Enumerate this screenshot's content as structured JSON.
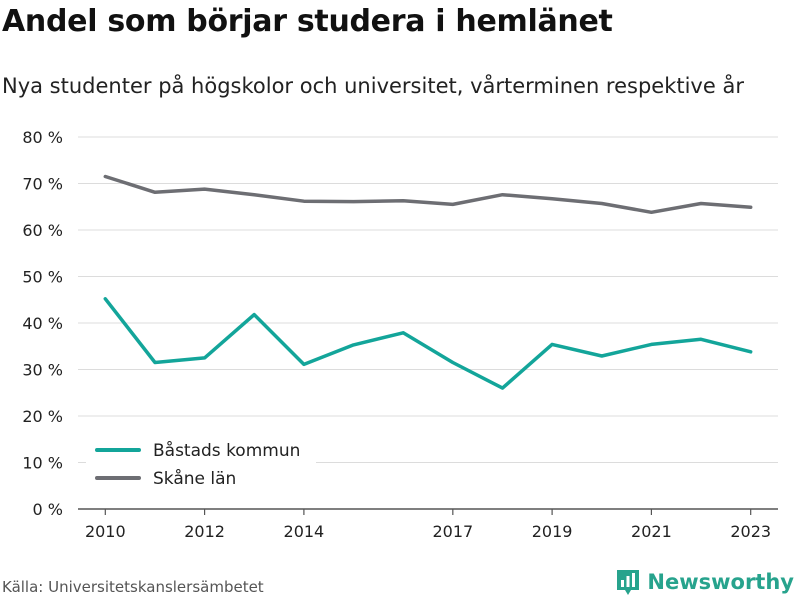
{
  "title": "Andel som börjar studera i hemlänet",
  "subtitle": "Nya studenter på högskolor och universitet, vårterminen respektive år",
  "source": "Källa: Universitetskanslersämbetet",
  "brand": {
    "name": "Newsworthy",
    "icon": "bar-chart-logo-icon",
    "color": "#27a38d"
  },
  "chart_data": {
    "type": "line",
    "x": [
      2010,
      2011,
      2012,
      2013,
      2014,
      2015,
      2016,
      2017,
      2018,
      2019,
      2020,
      2021,
      2022,
      2023
    ],
    "x_ticks": [
      2010,
      2012,
      2014,
      2017,
      2019,
      2021,
      2023
    ],
    "y_ticks": [
      0,
      10,
      20,
      30,
      40,
      50,
      60,
      70,
      80
    ],
    "y_tick_suffix": " %",
    "ylim": [
      0,
      80
    ],
    "grid": true,
    "legend_position": "bottom-left",
    "series": [
      {
        "name": "Båstads kommun",
        "color": "#13a59a",
        "values": [
          45.2,
          31.5,
          32.5,
          41.8,
          31.1,
          35.3,
          37.9,
          31.5,
          26.0,
          35.4,
          32.9,
          35.4,
          36.5,
          33.8
        ]
      },
      {
        "name": "Skåne län",
        "color": "#6d6e73",
        "values": [
          71.5,
          68.1,
          68.8,
          67.6,
          66.2,
          66.1,
          66.3,
          65.5,
          67.6,
          66.7,
          65.7,
          63.8,
          65.7,
          64.9
        ]
      }
    ]
  }
}
